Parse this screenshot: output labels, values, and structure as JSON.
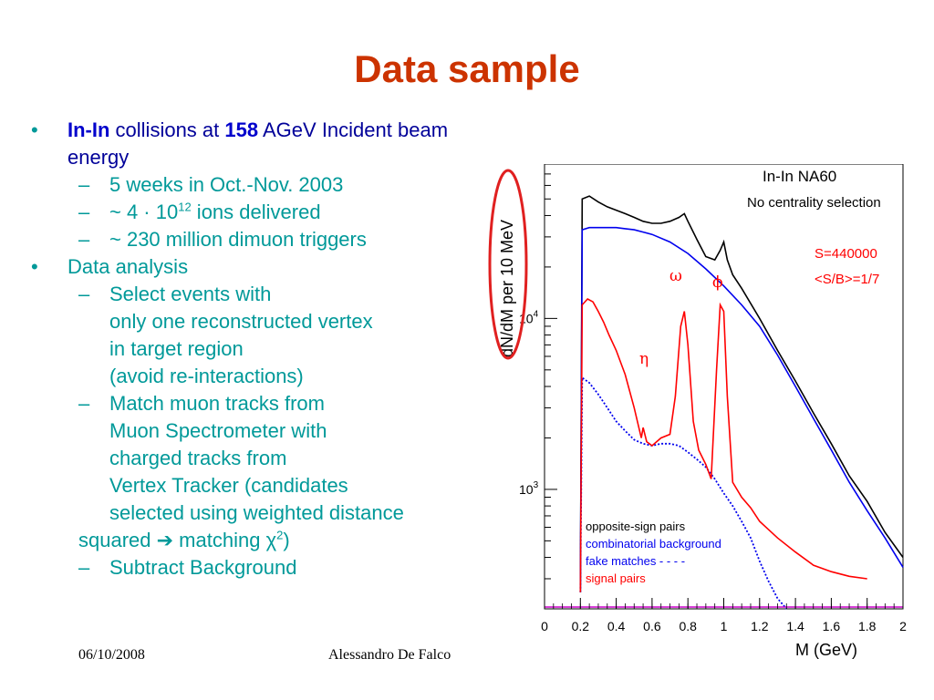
{
  "slide": {
    "title": "Data sample",
    "footer_date": "06/10/2008",
    "footer_author": "Alessandro De Falco"
  },
  "bullets": {
    "b1_a": "In-In",
    "b1_b": " collisions at ",
    "b1_c": "158",
    "b1_d": " AGeV Incident beam",
    "b1_e": "energy",
    "s1": "5 weeks in Oct.-Nov. 2003",
    "s2_a": "~ 4 · 10",
    "s2_sup": "12",
    "s2_b": " ions delivered",
    "s3": "~ 230 million dimuon triggers",
    "b2": "Data analysis",
    "s4_1": "Select events with",
    "s4_2": "only one reconstructed vertex",
    "s4_3": "in target region",
    "s4_4": "(avoid re-interactions)",
    "s5_1": "Match muon tracks from",
    "s5_2": "Muon Spectrometer with",
    "s5_3": "charged tracks from",
    "s5_4": "Vertex Tracker (candidates",
    "s5_5": "selected using weighted distance",
    "s5_6a": "squared ",
    "s5_6arrow": "➔",
    "s5_6b": " matching ",
    "s5_6chi": "χ",
    "s5_6sup": "2",
    "s5_6c": ")",
    "s6": "Subtract Background",
    "bullet_char": "•",
    "dash_char": "–"
  },
  "chart_data": {
    "type": "line",
    "title": "In-In  NA60",
    "subtitle": "No centrality selection",
    "xlabel": "M (GeV)",
    "ylabel": "dN/dM per 10 MeV",
    "xlim": [
      0,
      2
    ],
    "ylim": [
      200,
      80000
    ],
    "yscale": "log",
    "x_ticks": [
      "0",
      "0.2",
      "0.4",
      "0.6",
      "0.8",
      "1",
      "1.2",
      "1.4",
      "1.6",
      "1.8",
      "2"
    ],
    "y_ticks": [
      {
        "base": "10",
        "exp": "3",
        "value": 1000
      },
      {
        "base": "10",
        "exp": "4",
        "value": 10000
      }
    ],
    "annotations": {
      "stats_1": "S=440000",
      "stats_2": "<S/B>=1/7",
      "omega": "ω",
      "phi": "ϕ",
      "eta": "η"
    },
    "legend_position": "bottom-left",
    "series": [
      {
        "name": "opposite-sign pairs",
        "color": "#000000",
        "style": "solid",
        "x": [
          0.2,
          0.21,
          0.25,
          0.3,
          0.35,
          0.4,
          0.45,
          0.5,
          0.55,
          0.6,
          0.65,
          0.7,
          0.75,
          0.78,
          0.8,
          0.85,
          0.9,
          0.95,
          0.98,
          1.0,
          1.02,
          1.05,
          1.1,
          1.2,
          1.3,
          1.4,
          1.5,
          1.6,
          1.7,
          1.8,
          1.9,
          2.0
        ],
        "y": [
          250,
          50000,
          52000,
          48000,
          45000,
          43000,
          41000,
          39000,
          37000,
          36000,
          36000,
          37000,
          39000,
          41000,
          37000,
          29000,
          23000,
          22000,
          25000,
          28000,
          22000,
          18000,
          15000,
          10000,
          6500,
          4300,
          2800,
          1850,
          1200,
          850,
          560,
          400
        ]
      },
      {
        "name": "combinatorial background",
        "color": "#0000ee",
        "style": "solid",
        "x": [
          0.2,
          0.21,
          0.25,
          0.3,
          0.35,
          0.4,
          0.45,
          0.5,
          0.55,
          0.6,
          0.7,
          0.8,
          0.9,
          1.0,
          1.1,
          1.2,
          1.3,
          1.4,
          1.5,
          1.6,
          1.7,
          1.8,
          1.9,
          2.0
        ],
        "y": [
          250,
          33000,
          34000,
          34000,
          34000,
          34000,
          33500,
          33000,
          32000,
          31000,
          28000,
          24000,
          19500,
          15500,
          12000,
          9000,
          6100,
          4000,
          2600,
          1700,
          1100,
          750,
          520,
          350
        ]
      },
      {
        "name": "fake matches - - - -",
        "color": "#0000ee",
        "style": "dotted",
        "x": [
          0.2,
          0.21,
          0.25,
          0.3,
          0.35,
          0.4,
          0.45,
          0.5,
          0.55,
          0.6,
          0.65,
          0.7,
          0.75,
          0.8,
          0.85,
          0.9,
          0.95,
          1.0,
          1.05,
          1.1,
          1.15,
          1.2,
          1.25,
          1.3,
          1.35
        ],
        "y": [
          250,
          4500,
          4200,
          3600,
          3000,
          2500,
          2200,
          1950,
          1850,
          1800,
          1850,
          1850,
          1800,
          1650,
          1500,
          1350,
          1150,
          950,
          800,
          650,
          520,
          380,
          290,
          230,
          200
        ]
      },
      {
        "name": "signal pairs",
        "color": "#ff0000",
        "style": "solid",
        "x": [
          0.2,
          0.21,
          0.24,
          0.27,
          0.3,
          0.33,
          0.36,
          0.4,
          0.45,
          0.5,
          0.54,
          0.55,
          0.57,
          0.6,
          0.65,
          0.7,
          0.73,
          0.76,
          0.78,
          0.8,
          0.83,
          0.86,
          0.9,
          0.93,
          0.96,
          0.98,
          1.0,
          1.02,
          1.05,
          1.1,
          1.15,
          1.2,
          1.3,
          1.4,
          1.5,
          1.6,
          1.7,
          1.8
        ],
        "y": [
          250,
          12000,
          13000,
          12500,
          11000,
          9500,
          8000,
          6500,
          4700,
          3000,
          2000,
          2300,
          1900,
          1800,
          2000,
          2100,
          3500,
          9000,
          11000,
          7000,
          2500,
          1700,
          1400,
          1150,
          5000,
          12000,
          11000,
          3500,
          1100,
          900,
          780,
          650,
          520,
          430,
          360,
          330,
          310,
          300
        ]
      }
    ]
  }
}
